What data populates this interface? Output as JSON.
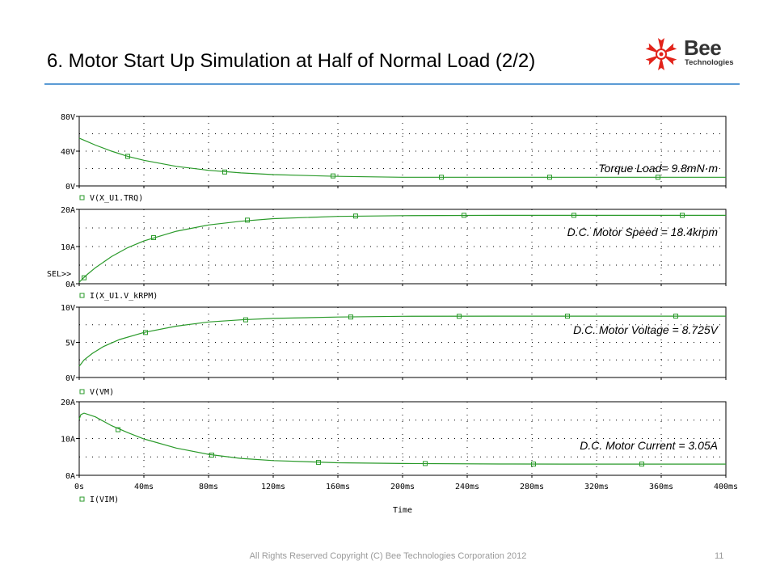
{
  "slide": {
    "title": "6. Motor Start Up Simulation at Half of Normal Load (2/2)",
    "logo_main": "Bee",
    "logo_sub": "Technologies",
    "footer": "All Rights Reserved Copyright (C) Bee Technologies Corporation 2012",
    "page_number": "11"
  },
  "colors": {
    "trace": "#2a9a2a",
    "grid": "#000000",
    "title_rule": "#5b9bd5",
    "logo_red": "#e2231a"
  },
  "chart_data": [
    {
      "type": "line",
      "series": [
        {
          "name": "V(X_U1.TRQ)",
          "x": [
            0,
            5,
            10,
            20,
            30,
            40,
            60,
            80,
            100,
            120,
            160,
            200,
            260,
            300,
            360,
            400
          ],
          "y": [
            55,
            51,
            47,
            40,
            34,
            29.5,
            22.5,
            18,
            15,
            13,
            11,
            10,
            10,
            10,
            10,
            10
          ]
        }
      ],
      "markers": [
        {
          "x": 30,
          "y": 34
        },
        {
          "x": 90,
          "y": 16
        },
        {
          "x": 157,
          "y": 11.5
        },
        {
          "x": 224,
          "y": 10
        },
        {
          "x": 291,
          "y": 10
        },
        {
          "x": 358,
          "y": 10
        }
      ],
      "ylim": [
        0,
        80
      ],
      "yticks": [
        {
          "v": 0,
          "label": "0V"
        },
        {
          "v": 40,
          "label": "40V"
        },
        {
          "v": 80,
          "label": "80V"
        }
      ],
      "annotation": "Torque Load= 9.8mN·m",
      "sel": ""
    },
    {
      "type": "line",
      "series": [
        {
          "name": "I(X_U1.V_kRPM)",
          "x": [
            0,
            2,
            5,
            10,
            20,
            30,
            40,
            60,
            80,
            100,
            120,
            160,
            200,
            260,
            300,
            360,
            400
          ],
          "y": [
            0.4,
            1.3,
            2.5,
            4.3,
            7.3,
            9.7,
            11.5,
            14.1,
            15.8,
            16.8,
            17.5,
            18.1,
            18.3,
            18.4,
            18.4,
            18.4,
            18.4
          ]
        }
      ],
      "markers": [
        {
          "x": 3,
          "y": 1.6
        },
        {
          "x": 46,
          "y": 12.4
        },
        {
          "x": 104,
          "y": 17.1
        },
        {
          "x": 171,
          "y": 18.2
        },
        {
          "x": 238,
          "y": 18.4
        },
        {
          "x": 306,
          "y": 18.4
        },
        {
          "x": 373,
          "y": 18.4
        }
      ],
      "ylim": [
        0,
        20
      ],
      "yticks": [
        {
          "v": 0,
          "label": "0A"
        },
        {
          "v": 10,
          "label": "10A"
        },
        {
          "v": 20,
          "label": "20A"
        }
      ],
      "annotation": "D.C. Motor Speed = 18.4krpm",
      "sel": "SEL>>"
    },
    {
      "type": "line",
      "series": [
        {
          "name": "V(VM)",
          "x": [
            0,
            1,
            3,
            8,
            15,
            25,
            40,
            60,
            80,
            100,
            120,
            160,
            200,
            260,
            300,
            360,
            400
          ],
          "y": [
            1.6,
            1.9,
            2.5,
            3.4,
            4.4,
            5.4,
            6.4,
            7.3,
            7.9,
            8.2,
            8.4,
            8.6,
            8.7,
            8.72,
            8.725,
            8.725,
            8.725
          ]
        }
      ],
      "markers": [
        {
          "x": 41,
          "y": 6.4
        },
        {
          "x": 103,
          "y": 8.2
        },
        {
          "x": 168,
          "y": 8.6
        },
        {
          "x": 235,
          "y": 8.7
        },
        {
          "x": 302,
          "y": 8.72
        },
        {
          "x": 369,
          "y": 8.725
        }
      ],
      "ylim": [
        0,
        10
      ],
      "yticks": [
        {
          "v": 0,
          "label": "0V"
        },
        {
          "v": 5,
          "label": "5V"
        },
        {
          "v": 10,
          "label": "10V"
        }
      ],
      "annotation": "D.C. Motor Voltage = 8.725V",
      "sel": ""
    },
    {
      "type": "line",
      "series": [
        {
          "name": "I(VIM)",
          "x": [
            0,
            1,
            3,
            10,
            20,
            30,
            40,
            60,
            80,
            100,
            120,
            160,
            200,
            260,
            300,
            360,
            400
          ],
          "y": [
            15.2,
            16.5,
            16.9,
            15.9,
            13.5,
            11.6,
            9.9,
            7.4,
            5.7,
            4.6,
            4.0,
            3.4,
            3.2,
            3.08,
            3.05,
            3.05,
            3.05
          ]
        }
      ],
      "markers": [
        {
          "x": 24,
          "y": 12.4
        },
        {
          "x": 82,
          "y": 5.5
        },
        {
          "x": 148,
          "y": 3.5
        },
        {
          "x": 214,
          "y": 3.2
        },
        {
          "x": 281,
          "y": 3.05
        },
        {
          "x": 348,
          "y": 3.05
        }
      ],
      "ylim": [
        0,
        20
      ],
      "yticks": [
        {
          "v": 0,
          "label": "0A"
        },
        {
          "v": 10,
          "label": "10A"
        },
        {
          "v": 20,
          "label": "20A"
        }
      ],
      "annotation": "D.C. Motor Current = 3.05A",
      "sel": ""
    }
  ],
  "x_axis": {
    "xlim": [
      0,
      400
    ],
    "ticks": [
      {
        "v": 0,
        "label": "0s"
      },
      {
        "v": 40,
        "label": "40ms"
      },
      {
        "v": 80,
        "label": "80ms"
      },
      {
        "v": 120,
        "label": "120ms"
      },
      {
        "v": 160,
        "label": "160ms"
      },
      {
        "v": 200,
        "label": "200ms"
      },
      {
        "v": 240,
        "label": "240ms"
      },
      {
        "v": 280,
        "label": "280ms"
      },
      {
        "v": 320,
        "label": "320ms"
      },
      {
        "v": 360,
        "label": "360ms"
      },
      {
        "v": 400,
        "label": "400ms"
      }
    ],
    "label": "Time"
  }
}
